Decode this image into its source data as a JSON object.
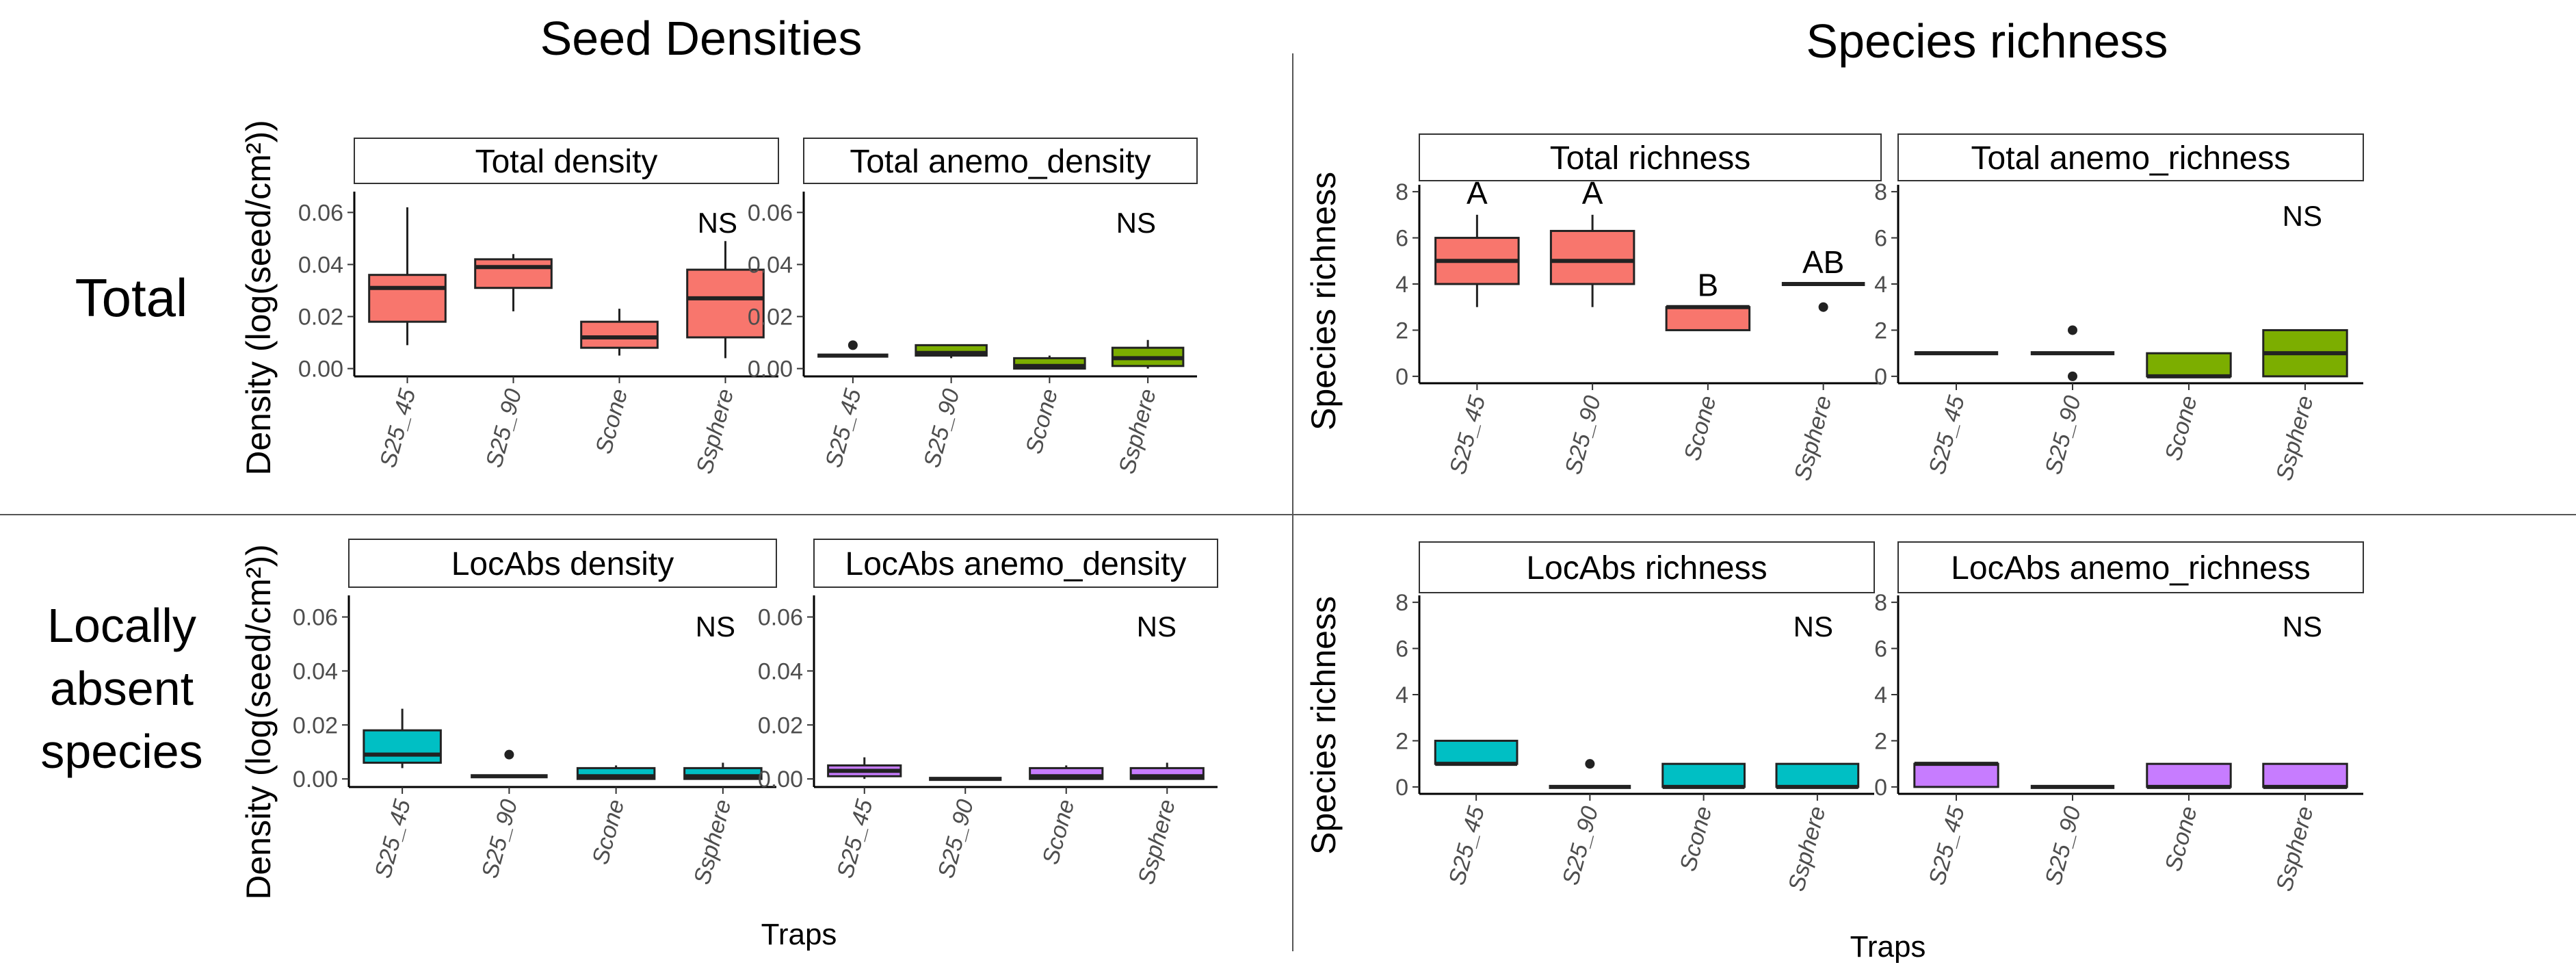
{
  "sections": {
    "seed_title": "Seed Densities",
    "richness_title": "Species richness",
    "row_total": "Total",
    "row_locabs": [
      "Locally",
      "absent",
      "species"
    ]
  },
  "y_titles": {
    "density": "Density (log(seed/cm²))",
    "richness": "Species richness"
  },
  "x_title": "Traps",
  "colors": {
    "red": "#f8766d",
    "green": "#7cae00",
    "cyan": "#00bfc4",
    "purple": "#c77cff"
  },
  "chart_data": [
    {
      "id": "total-density",
      "type": "box",
      "title": "Total density",
      "categories": [
        "S25_45",
        "S25_90",
        "Scone",
        "Ssphere"
      ],
      "ylim": [
        -0.003,
        0.068
      ],
      "yticks": [
        "0.00",
        "0.02",
        "0.04",
        "0.06"
      ],
      "ytick_values": [
        0,
        0.02,
        0.04,
        0.06
      ],
      "fill": "red",
      "boxes": [
        {
          "min": 0.009,
          "q1": 0.018,
          "median": 0.031,
          "q3": 0.036,
          "max": 0.062,
          "outliers": []
        },
        {
          "min": 0.022,
          "q1": 0.031,
          "median": 0.039,
          "q3": 0.042,
          "max": 0.044,
          "outliers": []
        },
        {
          "min": 0.005,
          "q1": 0.008,
          "median": 0.012,
          "q3": 0.018,
          "max": 0.023,
          "outliers": []
        },
        {
          "min": 0.004,
          "q1": 0.012,
          "median": 0.027,
          "q3": 0.038,
          "max": 0.049,
          "outliers": []
        }
      ],
      "annotations": [
        "NS"
      ]
    },
    {
      "id": "total-anemo-density",
      "type": "box",
      "title": "Total anemo_density",
      "categories": [
        "S25_45",
        "S25_90",
        "Scone",
        "Ssphere"
      ],
      "ylim": [
        -0.003,
        0.068
      ],
      "yticks": [
        "0.00",
        "0.02",
        "0.04",
        "0.06"
      ],
      "ytick_values": [
        0,
        0.02,
        0.04,
        0.06
      ],
      "fill": "green",
      "boxes": [
        {
          "min": 0.005,
          "q1": 0.005,
          "median": 0.005,
          "q3": 0.005,
          "max": 0.005,
          "outliers": [
            0.009
          ]
        },
        {
          "min": 0.004,
          "q1": 0.005,
          "median": 0.006,
          "q3": 0.009,
          "max": 0.009,
          "outliers": []
        },
        {
          "min": 0.0,
          "q1": 0.0,
          "median": 0.001,
          "q3": 0.004,
          "max": 0.005,
          "outliers": []
        },
        {
          "min": 0.0,
          "q1": 0.001,
          "median": 0.004,
          "q3": 0.008,
          "max": 0.011,
          "outliers": []
        }
      ],
      "annotations": [
        "NS"
      ]
    },
    {
      "id": "locabs-density",
      "type": "box",
      "title": "LocAbs density",
      "categories": [
        "S25_45",
        "S25_90",
        "Scone",
        "Ssphere"
      ],
      "ylim": [
        -0.003,
        0.068
      ],
      "yticks": [
        "0.00",
        "0.02",
        "0.04",
        "0.06"
      ],
      "ytick_values": [
        0,
        0.02,
        0.04,
        0.06
      ],
      "fill": "cyan",
      "boxes": [
        {
          "min": 0.004,
          "q1": 0.006,
          "median": 0.009,
          "q3": 0.018,
          "max": 0.026,
          "outliers": []
        },
        {
          "min": 0.001,
          "q1": 0.001,
          "median": 0.001,
          "q3": 0.001,
          "max": 0.001,
          "outliers": [
            0.009
          ]
        },
        {
          "min": 0.0,
          "q1": 0.0,
          "median": 0.001,
          "q3": 0.004,
          "max": 0.005,
          "outliers": []
        },
        {
          "min": 0.0,
          "q1": 0.0,
          "median": 0.001,
          "q3": 0.004,
          "max": 0.006,
          "outliers": []
        }
      ],
      "annotations": [
        "NS"
      ]
    },
    {
      "id": "locabs-anemo-density",
      "type": "box",
      "title": "LocAbs anemo_density",
      "categories": [
        "S25_45",
        "S25_90",
        "Scone",
        "Ssphere"
      ],
      "ylim": [
        -0.003,
        0.068
      ],
      "yticks": [
        "0.00",
        "0.02",
        "0.04",
        "0.06"
      ],
      "ytick_values": [
        0,
        0.02,
        0.04,
        0.06
      ],
      "fill": "purple",
      "boxes": [
        {
          "min": 0.0,
          "q1": 0.001,
          "median": 0.003,
          "q3": 0.005,
          "max": 0.008,
          "outliers": []
        },
        {
          "min": 0.0,
          "q1": 0.0,
          "median": 0.0,
          "q3": 0.0,
          "max": 0.0,
          "outliers": []
        },
        {
          "min": 0.0,
          "q1": 0.0,
          "median": 0.001,
          "q3": 0.004,
          "max": 0.005,
          "outliers": []
        },
        {
          "min": 0.0,
          "q1": 0.0,
          "median": 0.001,
          "q3": 0.004,
          "max": 0.006,
          "outliers": []
        }
      ],
      "annotations": [
        "NS"
      ]
    },
    {
      "id": "total-richness",
      "type": "box",
      "title": "Total richness",
      "categories": [
        "S25_45",
        "S25_90",
        "Scone",
        "Ssphere"
      ],
      "ylim": [
        -0.3,
        8.3
      ],
      "yticks": [
        "0",
        "2",
        "4",
        "6",
        "8"
      ],
      "ytick_values": [
        0,
        2,
        4,
        6,
        8
      ],
      "fill": "red",
      "boxes": [
        {
          "min": 3,
          "q1": 4,
          "median": 5,
          "q3": 6,
          "max": 7,
          "outliers": []
        },
        {
          "min": 3,
          "q1": 4,
          "median": 5,
          "q3": 6.3,
          "max": 7,
          "outliers": []
        },
        {
          "min": 2,
          "q1": 2,
          "median": 3,
          "q3": 3,
          "max": 3,
          "outliers": []
        },
        {
          "min": 4,
          "q1": 4,
          "median": 4,
          "q3": 4,
          "max": 4,
          "outliers": [
            3
          ]
        }
      ],
      "group_letters": [
        "A",
        "A",
        "B",
        "AB"
      ]
    },
    {
      "id": "total-anemo-richness",
      "type": "box",
      "title": "Total anemo_richness",
      "categories": [
        "S25_45",
        "S25_90",
        "Scone",
        "Ssphere"
      ],
      "ylim": [
        -0.3,
        8.3
      ],
      "yticks": [
        "0",
        "2",
        "4",
        "6",
        "8"
      ],
      "ytick_values": [
        0,
        2,
        4,
        6,
        8
      ],
      "fill": "green",
      "boxes": [
        {
          "min": 1,
          "q1": 1,
          "median": 1,
          "q3": 1,
          "max": 1,
          "outliers": []
        },
        {
          "min": 1,
          "q1": 1,
          "median": 1,
          "q3": 1,
          "max": 1,
          "outliers": [
            0,
            2
          ]
        },
        {
          "min": 0,
          "q1": 0,
          "median": 0,
          "q3": 1,
          "max": 1,
          "outliers": []
        },
        {
          "min": 0,
          "q1": 0,
          "median": 1,
          "q3": 2,
          "max": 2,
          "outliers": []
        }
      ],
      "annotations": [
        "NS"
      ]
    },
    {
      "id": "locabs-richness",
      "type": "box",
      "title": "LocAbs richness",
      "categories": [
        "S25_45",
        "S25_90",
        "Scone",
        "Ssphere"
      ],
      "ylim": [
        -0.3,
        8.3
      ],
      "yticks": [
        "0",
        "2",
        "4",
        "6",
        "8"
      ],
      "ytick_values": [
        0,
        2,
        4,
        6,
        8
      ],
      "fill": "cyan",
      "boxes": [
        {
          "min": 1,
          "q1": 1,
          "median": 1,
          "q3": 2,
          "max": 2,
          "outliers": []
        },
        {
          "min": 0,
          "q1": 0,
          "median": 0,
          "q3": 0,
          "max": 0,
          "outliers": [
            1
          ]
        },
        {
          "min": 0,
          "q1": 0,
          "median": 0,
          "q3": 1,
          "max": 1,
          "outliers": []
        },
        {
          "min": 0,
          "q1": 0,
          "median": 0,
          "q3": 1,
          "max": 1,
          "outliers": []
        }
      ],
      "annotations": [
        "NS"
      ]
    },
    {
      "id": "locabs-anemo-richness",
      "type": "box",
      "title": "LocAbs anemo_richness",
      "categories": [
        "S25_45",
        "S25_90",
        "Scone",
        "Ssphere"
      ],
      "ylim": [
        -0.3,
        8.3
      ],
      "yticks": [
        "0",
        "2",
        "4",
        "6",
        "8"
      ],
      "ytick_values": [
        0,
        2,
        4,
        6,
        8
      ],
      "fill": "purple",
      "boxes": [
        {
          "min": 0,
          "q1": 0,
          "median": 1,
          "q3": 1,
          "max": 1,
          "outliers": []
        },
        {
          "min": 0,
          "q1": 0,
          "median": 0,
          "q3": 0,
          "max": 0,
          "outliers": []
        },
        {
          "min": 0,
          "q1": 0,
          "median": 0,
          "q3": 1,
          "max": 1,
          "outliers": []
        },
        {
          "min": 0,
          "q1": 0,
          "median": 0,
          "q3": 1,
          "max": 1,
          "outliers": []
        }
      ],
      "annotations": [
        "NS"
      ]
    }
  ]
}
